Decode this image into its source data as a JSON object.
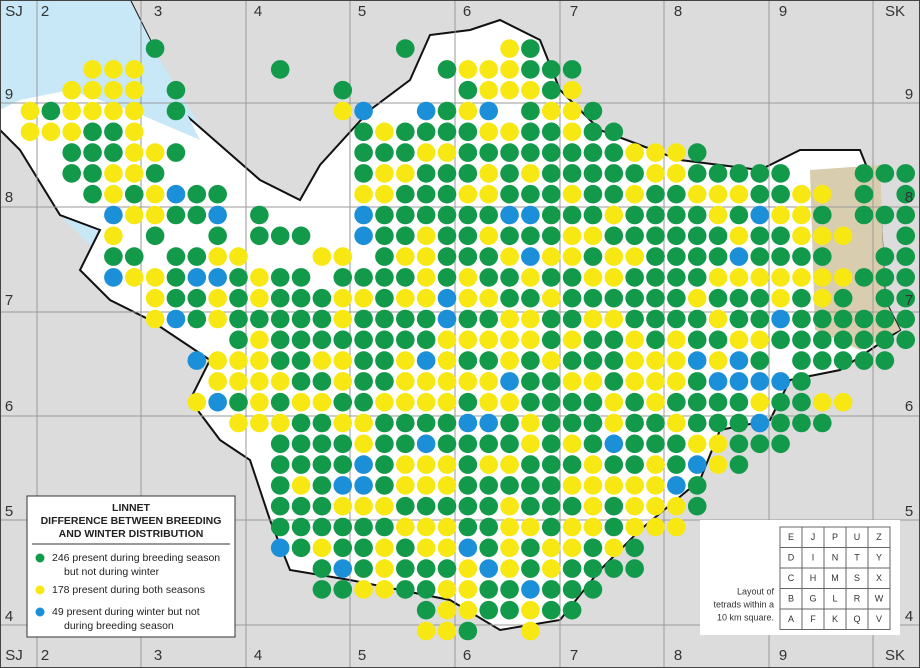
{
  "grid_labels": {
    "top": [
      "SJ",
      "2",
      "3",
      "4",
      "5",
      "6",
      "7",
      "8",
      "9",
      "SK"
    ],
    "left": [
      "9",
      "8",
      "7",
      "6",
      "5",
      "4"
    ],
    "right": [
      "9",
      "8",
      "7",
      "6",
      "5",
      "4"
    ],
    "bottom": [
      "SJ",
      "2",
      "3",
      "4",
      "5",
      "6",
      "7",
      "8",
      "9",
      "SK"
    ]
  },
  "legend": {
    "title": [
      "LINNET",
      "DIFFERENCE BETWEEN BREEDING",
      "AND WINTER DISTRIBUTION"
    ],
    "items": [
      {
        "text": [
          "246 present during breeding season",
          "but not during winter"
        ],
        "color": "#12994a"
      },
      {
        "text": [
          "178 present during both seasons"
        ],
        "color": "#f7e814"
      },
      {
        "text": [
          "49 present during winter but not",
          "during breeding season"
        ],
        "color": "#1b8fd8"
      }
    ]
  },
  "tetrad_key": {
    "rows": [
      [
        "E",
        "J",
        "P",
        "U",
        "Z"
      ],
      [
        "D",
        "I",
        "N",
        "T",
        "Y"
      ],
      [
        "C",
        "H",
        "M",
        "S",
        "X"
      ],
      [
        "B",
        "G",
        "L",
        "R",
        "W"
      ],
      [
        "A",
        "F",
        "K",
        "Q",
        "V"
      ]
    ],
    "caption": [
      "Layout of",
      "tetrads within a",
      "10 km square."
    ]
  }
}
